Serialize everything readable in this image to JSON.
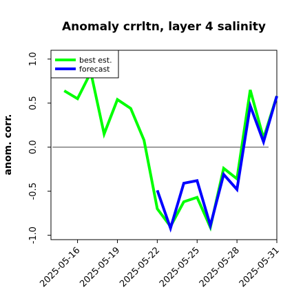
{
  "chart_data": {
    "type": "line",
    "title": "Anomaly crrltn, layer 4 salinity",
    "xlabel": "",
    "ylabel": "anom. corr.",
    "ylim": [
      -1.05,
      1.1
    ],
    "yticks": [
      -1.0,
      -0.5,
      0.0,
      0.5,
      1.0
    ],
    "ytick_labels": [
      "-1.0",
      "-0.5",
      "0.0",
      "0.5",
      "1.0"
    ],
    "x": [
      "2025-05-15",
      "2025-05-16",
      "2025-05-17",
      "2025-05-18",
      "2025-05-19",
      "2025-05-20",
      "2025-05-21",
      "2025-05-22",
      "2025-05-23",
      "2025-05-24",
      "2025-05-25",
      "2025-05-26",
      "2025-05-27",
      "2025-05-28",
      "2025-05-29",
      "2025-05-30",
      "2025-05-31"
    ],
    "xticks": [
      "2025-05-16",
      "2025-05-19",
      "2025-05-22",
      "2025-05-25",
      "2025-05-28",
      "2025-05-31"
    ],
    "xtick_colors": [
      "#000000",
      "#000000",
      "#228b22",
      "#000000",
      "#000000",
      "#000000"
    ],
    "xlim": [
      "2025-05-14",
      "2025-05-31"
    ],
    "reference_line": 0.0,
    "grid": false,
    "legend_position": "top-left",
    "series": [
      {
        "name": "best est.",
        "color": "#00ff00",
        "x": [
          "2025-05-15",
          "2025-05-16",
          "2025-05-17",
          "2025-05-18",
          "2025-05-19",
          "2025-05-20",
          "2025-05-21",
          "2025-05-22",
          "2025-05-23",
          "2025-05-24",
          "2025-05-25",
          "2025-05-26",
          "2025-05-27",
          "2025-05-28",
          "2025-05-29",
          "2025-05-30",
          "2025-05-31"
        ],
        "values": [
          0.64,
          0.55,
          0.85,
          0.15,
          0.54,
          0.44,
          0.08,
          -0.7,
          -0.9,
          -0.62,
          -0.57,
          -0.91,
          -0.24,
          -0.36,
          0.65,
          0.1,
          0.58
        ]
      },
      {
        "name": "forecast",
        "color": "#0000ff",
        "x": [
          "2025-05-22",
          "2025-05-23",
          "2025-05-24",
          "2025-05-25",
          "2025-05-26",
          "2025-05-27",
          "2025-05-28",
          "2025-05-29",
          "2025-05-30",
          "2025-05-31"
        ],
        "values": [
          -0.49,
          -0.92,
          -0.41,
          -0.38,
          -0.89,
          -0.31,
          -0.48,
          0.47,
          0.06,
          0.58
        ]
      }
    ]
  }
}
